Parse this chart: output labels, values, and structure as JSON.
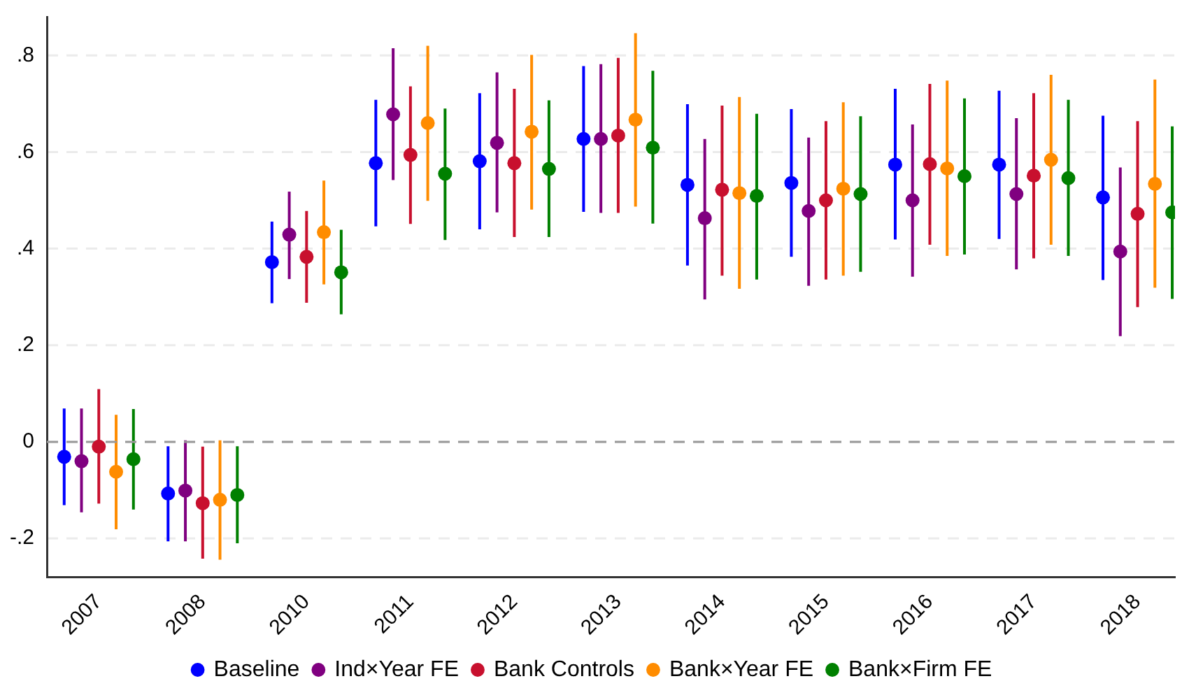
{
  "chart_data": {
    "type": "scatter",
    "categories": [
      "2007",
      "2008",
      "2010",
      "2011",
      "2012",
      "2013",
      "2014",
      "2015",
      "2016",
      "2017",
      "2018"
    ],
    "series": [
      {
        "name": "Baseline",
        "color": "#0000ff",
        "values": [
          -0.031,
          -0.107,
          0.372,
          0.577,
          0.581,
          0.627,
          0.532,
          0.536,
          0.574,
          0.574,
          0.506
        ],
        "errors": [
          [
            -0.131,
            0.069
          ],
          [
            -0.206,
            -0.009
          ],
          [
            0.287,
            0.456
          ],
          [
            0.446,
            0.708
          ],
          [
            0.44,
            0.722
          ],
          [
            0.476,
            0.778
          ],
          [
            0.365,
            0.699
          ],
          [
            0.383,
            0.689
          ],
          [
            0.419,
            0.731
          ],
          [
            0.42,
            0.727
          ],
          [
            0.335,
            0.675
          ]
        ]
      },
      {
        "name": "Ind×Year FE",
        "color": "#800080",
        "values": [
          -0.04,
          -0.101,
          0.429,
          0.678,
          0.619,
          0.627,
          0.463,
          0.478,
          0.5,
          0.513,
          0.394
        ],
        "errors": [
          [
            -0.146,
            0.069
          ],
          [
            -0.206,
            0.003
          ],
          [
            0.337,
            0.518
          ],
          [
            0.542,
            0.815
          ],
          [
            0.475,
            0.765
          ],
          [
            0.474,
            0.782
          ],
          [
            0.295,
            0.627
          ],
          [
            0.323,
            0.63
          ],
          [
            0.342,
            0.657
          ],
          [
            0.357,
            0.67
          ],
          [
            0.219,
            0.568
          ]
        ]
      },
      {
        "name": "Bank Controls",
        "color": "#c8102e",
        "values": [
          -0.01,
          -0.127,
          0.383,
          0.594,
          0.577,
          0.634,
          0.522,
          0.5,
          0.575,
          0.551,
          0.472
        ],
        "errors": [
          [
            -0.128,
            0.109
          ],
          [
            -0.242,
            -0.01
          ],
          [
            0.288,
            0.478
          ],
          [
            0.451,
            0.736
          ],
          [
            0.424,
            0.731
          ],
          [
            0.474,
            0.795
          ],
          [
            0.344,
            0.696
          ],
          [
            0.336,
            0.664
          ],
          [
            0.408,
            0.741
          ],
          [
            0.38,
            0.722
          ],
          [
            0.279,
            0.664
          ]
        ]
      },
      {
        "name": "Bank×Year FE",
        "color": "#ff8c00",
        "values": [
          -0.062,
          -0.12,
          0.434,
          0.66,
          0.642,
          0.667,
          0.515,
          0.524,
          0.566,
          0.584,
          0.534
        ],
        "errors": [
          [
            -0.181,
            0.056
          ],
          [
            -0.244,
            0.003
          ],
          [
            0.326,
            0.541
          ],
          [
            0.499,
            0.82
          ],
          [
            0.481,
            0.801
          ],
          [
            0.487,
            0.846
          ],
          [
            0.317,
            0.714
          ],
          [
            0.344,
            0.703
          ],
          [
            0.385,
            0.748
          ],
          [
            0.408,
            0.76
          ],
          [
            0.319,
            0.75
          ]
        ]
      },
      {
        "name": "Bank×Firm FE",
        "color": "#008000",
        "values": [
          -0.036,
          -0.11,
          0.351,
          0.555,
          0.565,
          0.609,
          0.509,
          0.513,
          0.55,
          0.546,
          0.475
        ],
        "errors": [
          [
            -0.14,
            0.068
          ],
          [
            -0.21,
            -0.009
          ],
          [
            0.264,
            0.439
          ],
          [
            0.418,
            0.69
          ],
          [
            0.424,
            0.707
          ],
          [
            0.452,
            0.768
          ],
          [
            0.336,
            0.679
          ],
          [
            0.352,
            0.674
          ],
          [
            0.388,
            0.711
          ],
          [
            0.385,
            0.708
          ],
          [
            0.296,
            0.653
          ]
        ]
      }
    ],
    "ylim": [
      -0.28,
      0.88
    ],
    "yticks": [
      {
        "value": -0.2,
        "label": "-.2"
      },
      0,
      {
        "value": 0.2,
        "label": ".2"
      },
      {
        "value": 0.4,
        "label": ".4"
      },
      {
        "value": 0.6,
        "label": ".6"
      },
      {
        "value": 0.8,
        "label": ".8"
      }
    ],
    "ref_lines": [
      {
        "axis": "y",
        "value": 0,
        "color": "#999999",
        "line_style": "dashed"
      }
    ],
    "grid": "y",
    "legend": "bottom",
    "marker": "circle"
  }
}
